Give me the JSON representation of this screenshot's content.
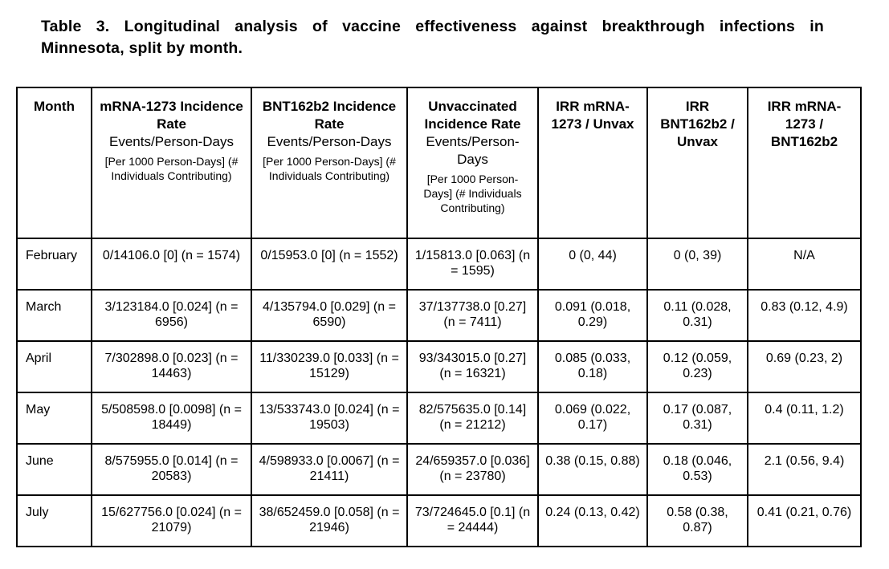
{
  "caption": {
    "line1": "Table 3. Longitudinal analysis of vaccine effectiveness against breakthrough infections in",
    "line2": "Minnesota, split by month."
  },
  "headers": [
    {
      "bold": "Month",
      "norm": "",
      "small": ""
    },
    {
      "bold": "mRNA-1273 Incidence Rate",
      "norm": "Events/Person-Days",
      "small": "[Per 1000 Person-Days] (# Individuals Contributing)"
    },
    {
      "bold": "BNT162b2 Incidence Rate",
      "norm": "Events/Person-Days",
      "small": "[Per 1000 Person-Days] (# Individuals Contributing)"
    },
    {
      "bold": "Unvaccinated Incidence Rate",
      "norm": "Events/Person-Days",
      "small": "[Per 1000 Person-Days] (# Individuals Contributing)"
    },
    {
      "bold": "IRR mRNA-1273 / Unvax",
      "norm": "",
      "small": ""
    },
    {
      "bold": "IRR BNT162b2 / Unvax",
      "norm": "",
      "small": ""
    },
    {
      "bold": "IRR mRNA-1273 / BNT162b2",
      "norm": "",
      "small": ""
    }
  ],
  "rows": [
    [
      "February",
      "0/14106.0 [0] (n = 1574)",
      "0/15953.0 [0] (n = 1552)",
      "1/15813.0 [0.063] (n = 1595)",
      "0 (0, 44)",
      "0 (0, 39)",
      "N/A"
    ],
    [
      "March",
      "3/123184.0 [0.024] (n = 6956)",
      "4/135794.0 [0.029] (n = 6590)",
      "37/137738.0 [0.27] (n = 7411)",
      "0.091 (0.018, 0.29)",
      "0.11 (0.028, 0.31)",
      "0.83 (0.12, 4.9)"
    ],
    [
      "April",
      "7/302898.0 [0.023] (n = 14463)",
      "11/330239.0 [0.033] (n = 15129)",
      "93/343015.0 [0.27] (n = 16321)",
      "0.085 (0.033, 0.18)",
      "0.12 (0.059, 0.23)",
      "0.69 (0.23, 2)"
    ],
    [
      "May",
      "5/508598.0 [0.0098] (n = 18449)",
      "13/533743.0 [0.024] (n = 19503)",
      "82/575635.0 [0.14] (n = 21212)",
      "0.069 (0.022, 0.17)",
      "0.17 (0.087, 0.31)",
      "0.4 (0.11, 1.2)"
    ],
    [
      "June",
      "8/575955.0 [0.014] (n = 20583)",
      "4/598933.0 [0.0067] (n = 21411)",
      "24/659357.0 [0.036] (n = 23780)",
      "0.38 (0.15, 0.88)",
      "0.18 (0.046, 0.53)",
      "2.1 (0.56, 9.4)"
    ],
    [
      "July",
      "15/627756.0 [0.024] (n = 21079)",
      "38/652459.0 [0.058] (n = 21946)",
      "73/724645.0 [0.1] (n = 24444)",
      "0.24 (0.13, 0.42)",
      "0.58 (0.38, 0.87)",
      "0.41 (0.21, 0.76)"
    ]
  ]
}
